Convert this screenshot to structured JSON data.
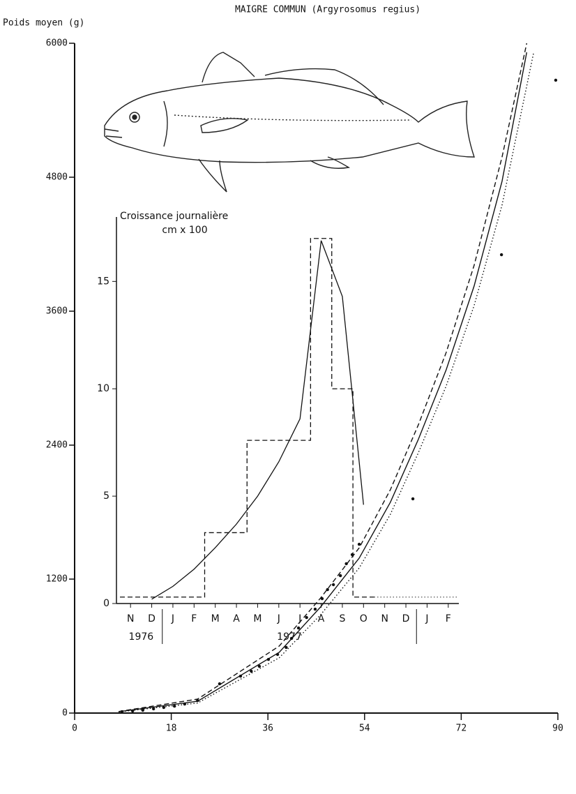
{
  "chart_data": [
    {
      "type": "scatter",
      "title": "MAIGRE COMMUN (Argyrosomus regius)",
      "y_label": "Poids moyen (g)",
      "xlim": [
        0,
        90
      ],
      "xticks": [
        0,
        18,
        36,
        54,
        72,
        90
      ],
      "ylim": [
        0,
        6000
      ],
      "yticks": [
        0,
        1200,
        2400,
        3600,
        4800,
        6000
      ],
      "series": [
        {
          "type": "scatter",
          "color": "#111111",
          "x": [
            8.8,
            10.8,
            12.7,
            14.7,
            16.6,
            18.6,
            20.5,
            22.9,
            27,
            30.9,
            32.9,
            34.4,
            36.1,
            37.8,
            39.4,
            40.4,
            41.7,
            43.2,
            44.8,
            46.1,
            47.1,
            48.2,
            49.5,
            50.6,
            51.7,
            53,
            63,
            79.5,
            89.6
          ],
          "values": [
            12,
            19,
            25,
            38,
            50,
            62,
            81,
            112,
            262,
            331,
            375,
            419,
            481,
            525,
            588,
            669,
            762,
            856,
            931,
            1025,
            1106,
            1150,
            1231,
            1338,
            1419,
            1512,
            1919,
            4106,
            5669
          ]
        },
        {
          "type": "line",
          "style": "solid",
          "color": "#111111",
          "x": [
            8.2,
            22.9,
            38.1,
            45.8,
            53,
            58.8,
            64,
            69.2,
            74.4,
            79.6,
            84.2
          ],
          "values": [
            12,
            106,
            544,
            950,
            1388,
            1888,
            2450,
            3075,
            3825,
            4763,
            5919
          ]
        },
        {
          "type": "line",
          "style": "dashed",
          "color": "#111111",
          "x": [
            8.2,
            22.9,
            38.1,
            45.8,
            53,
            58.8,
            64,
            69.2,
            74.4,
            79.6,
            84.2
          ],
          "values": [
            14,
            125,
            600,
            1030,
            1480,
            2000,
            2580,
            3230,
            4010,
            4980,
            6000
          ]
        },
        {
          "type": "line",
          "style": "dotted",
          "color": "#111111",
          "x": [
            8.2,
            22.9,
            38.1,
            45.8,
            53,
            58.8,
            64,
            69.2,
            74.4,
            79.6,
            85.5
          ],
          "values": [
            10,
            90,
            495,
            880,
            1300,
            1780,
            2330,
            2930,
            3650,
            4550,
            5919
          ]
        }
      ]
    },
    {
      "type": "line",
      "title": "Croissance journalière",
      "subtitle": "cm x 100",
      "ylim": [
        0,
        18
      ],
      "yticks": [
        0,
        5,
        10,
        15
      ],
      "categories": [
        "N",
        "D",
        "J",
        "F",
        "M",
        "A",
        "M",
        "J",
        "J",
        "A",
        "S",
        "O",
        "N",
        "D",
        "J",
        "F"
      ],
      "year_groups": [
        {
          "label": "1976",
          "count": 2
        },
        {
          "label": "1977",
          "count": 12
        }
      ],
      "series": [
        {
          "style": "dashed",
          "step": true,
          "color": "#111111",
          "values": [
            0.3,
            0.3,
            0.3,
            0.3,
            3.3,
            3.3,
            7.6,
            7.6,
            7.6,
            17,
            10,
            0.3,
            null,
            null,
            null,
            null
          ]
        },
        {
          "style": "dotted",
          "step": true,
          "color": "#555555",
          "values": [
            null,
            null,
            null,
            null,
            null,
            null,
            null,
            null,
            null,
            null,
            null,
            null,
            0.3,
            0.3,
            0.3,
            0.3
          ]
        },
        {
          "style": "solid",
          "step": false,
          "color": "#111111",
          "values": [
            null,
            0.2,
            0.8,
            1.6,
            2.6,
            3.7,
            5.0,
            6.6,
            8.6,
            16.9,
            14.3,
            4.6,
            null,
            null,
            null,
            null
          ]
        }
      ]
    }
  ]
}
